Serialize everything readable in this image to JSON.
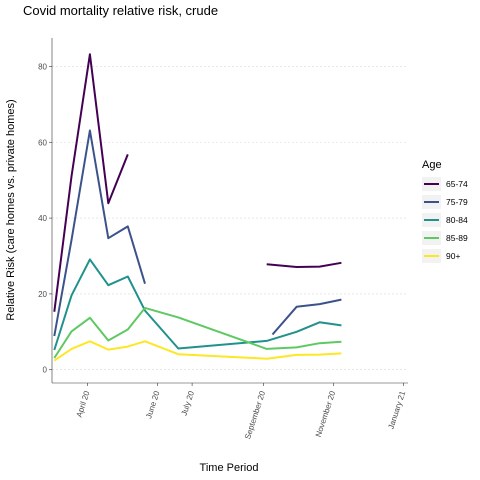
{
  "chart_data": {
    "type": "line",
    "title": "Covid mortality relative risk, crude",
    "xlabel": "Time Period",
    "ylabel": "Relative Risk (care homes vs. private homes)",
    "x_ticks": [
      "April 20",
      "June 20",
      "July 20",
      "September 20",
      "November 20",
      "January 21"
    ],
    "x_tick_dates": [
      "2020-04-01",
      "2020-06-01",
      "2020-07-01",
      "2020-09-01",
      "2020-11-01",
      "2021-01-01"
    ],
    "xlim": [
      "2020-03-01",
      "2021-01-05"
    ],
    "y_ticks": [
      0,
      20,
      40,
      60,
      80
    ],
    "ylim": [
      -3.5,
      87.5
    ],
    "grid": true,
    "legend": {
      "title": "Age",
      "position": "right"
    },
    "series": [
      {
        "name": "65-74",
        "color": "#440154",
        "points": [
          [
            "2020-03-03",
            15.3
          ],
          [
            "2020-03-18",
            51.0
          ],
          [
            "2020-04-03",
            83.2
          ],
          [
            "2020-04-19",
            43.9
          ],
          [
            "2020-05-06",
            56.8
          ],
          null,
          [
            "2020-09-04",
            27.8
          ],
          [
            "2020-09-30",
            27.1
          ],
          [
            "2020-10-20",
            27.2
          ],
          [
            "2020-11-08",
            28.2
          ]
        ]
      },
      {
        "name": "75-79",
        "color": "#3b528b",
        "points": [
          [
            "2020-03-03",
            8.9
          ],
          [
            "2020-03-18",
            34.2
          ],
          [
            "2020-04-03",
            63.1
          ],
          [
            "2020-04-19",
            34.7
          ],
          [
            "2020-05-06",
            37.8
          ],
          [
            "2020-05-21",
            22.7
          ],
          null,
          [
            "2020-09-09",
            9.3
          ],
          [
            "2020-09-30",
            16.6
          ],
          [
            "2020-10-20",
            17.3
          ],
          [
            "2020-11-08",
            18.5
          ]
        ]
      },
      {
        "name": "80-84",
        "color": "#21918c",
        "points": [
          [
            "2020-03-03",
            5.2
          ],
          [
            "2020-03-18",
            19.6
          ],
          [
            "2020-04-03",
            29.1
          ],
          [
            "2020-04-19",
            22.3
          ],
          [
            "2020-05-06",
            24.6
          ],
          [
            "2020-05-21",
            15.6
          ],
          [
            "2020-06-19",
            5.6
          ],
          [
            "2020-09-04",
            7.6
          ],
          [
            "2020-09-30",
            10.0
          ],
          [
            "2020-10-20",
            12.5
          ],
          [
            "2020-11-08",
            11.7
          ]
        ]
      },
      {
        "name": "85-89",
        "color": "#5ec962",
        "points": [
          [
            "2020-03-03",
            3.1
          ],
          [
            "2020-03-18",
            10.1
          ],
          [
            "2020-04-03",
            13.7
          ],
          [
            "2020-04-19",
            7.7
          ],
          [
            "2020-05-06",
            10.6
          ],
          [
            "2020-05-21",
            16.3
          ],
          [
            "2020-06-19",
            13.8
          ],
          [
            "2020-09-04",
            5.5
          ],
          [
            "2020-09-30",
            5.9
          ],
          [
            "2020-10-20",
            7.0
          ],
          [
            "2020-11-08",
            7.4
          ]
        ]
      },
      {
        "name": "90+",
        "color": "#fde725",
        "points": [
          [
            "2020-03-03",
            2.4
          ],
          [
            "2020-03-18",
            5.5
          ],
          [
            "2020-04-03",
            7.5
          ],
          [
            "2020-04-19",
            5.3
          ],
          [
            "2020-05-06",
            6.1
          ],
          [
            "2020-05-21",
            7.5
          ],
          [
            "2020-06-19",
            4.1
          ],
          [
            "2020-09-04",
            2.9
          ],
          [
            "2020-09-30",
            3.9
          ],
          [
            "2020-10-20",
            4.0
          ],
          [
            "2020-11-08",
            4.3
          ]
        ]
      }
    ]
  }
}
